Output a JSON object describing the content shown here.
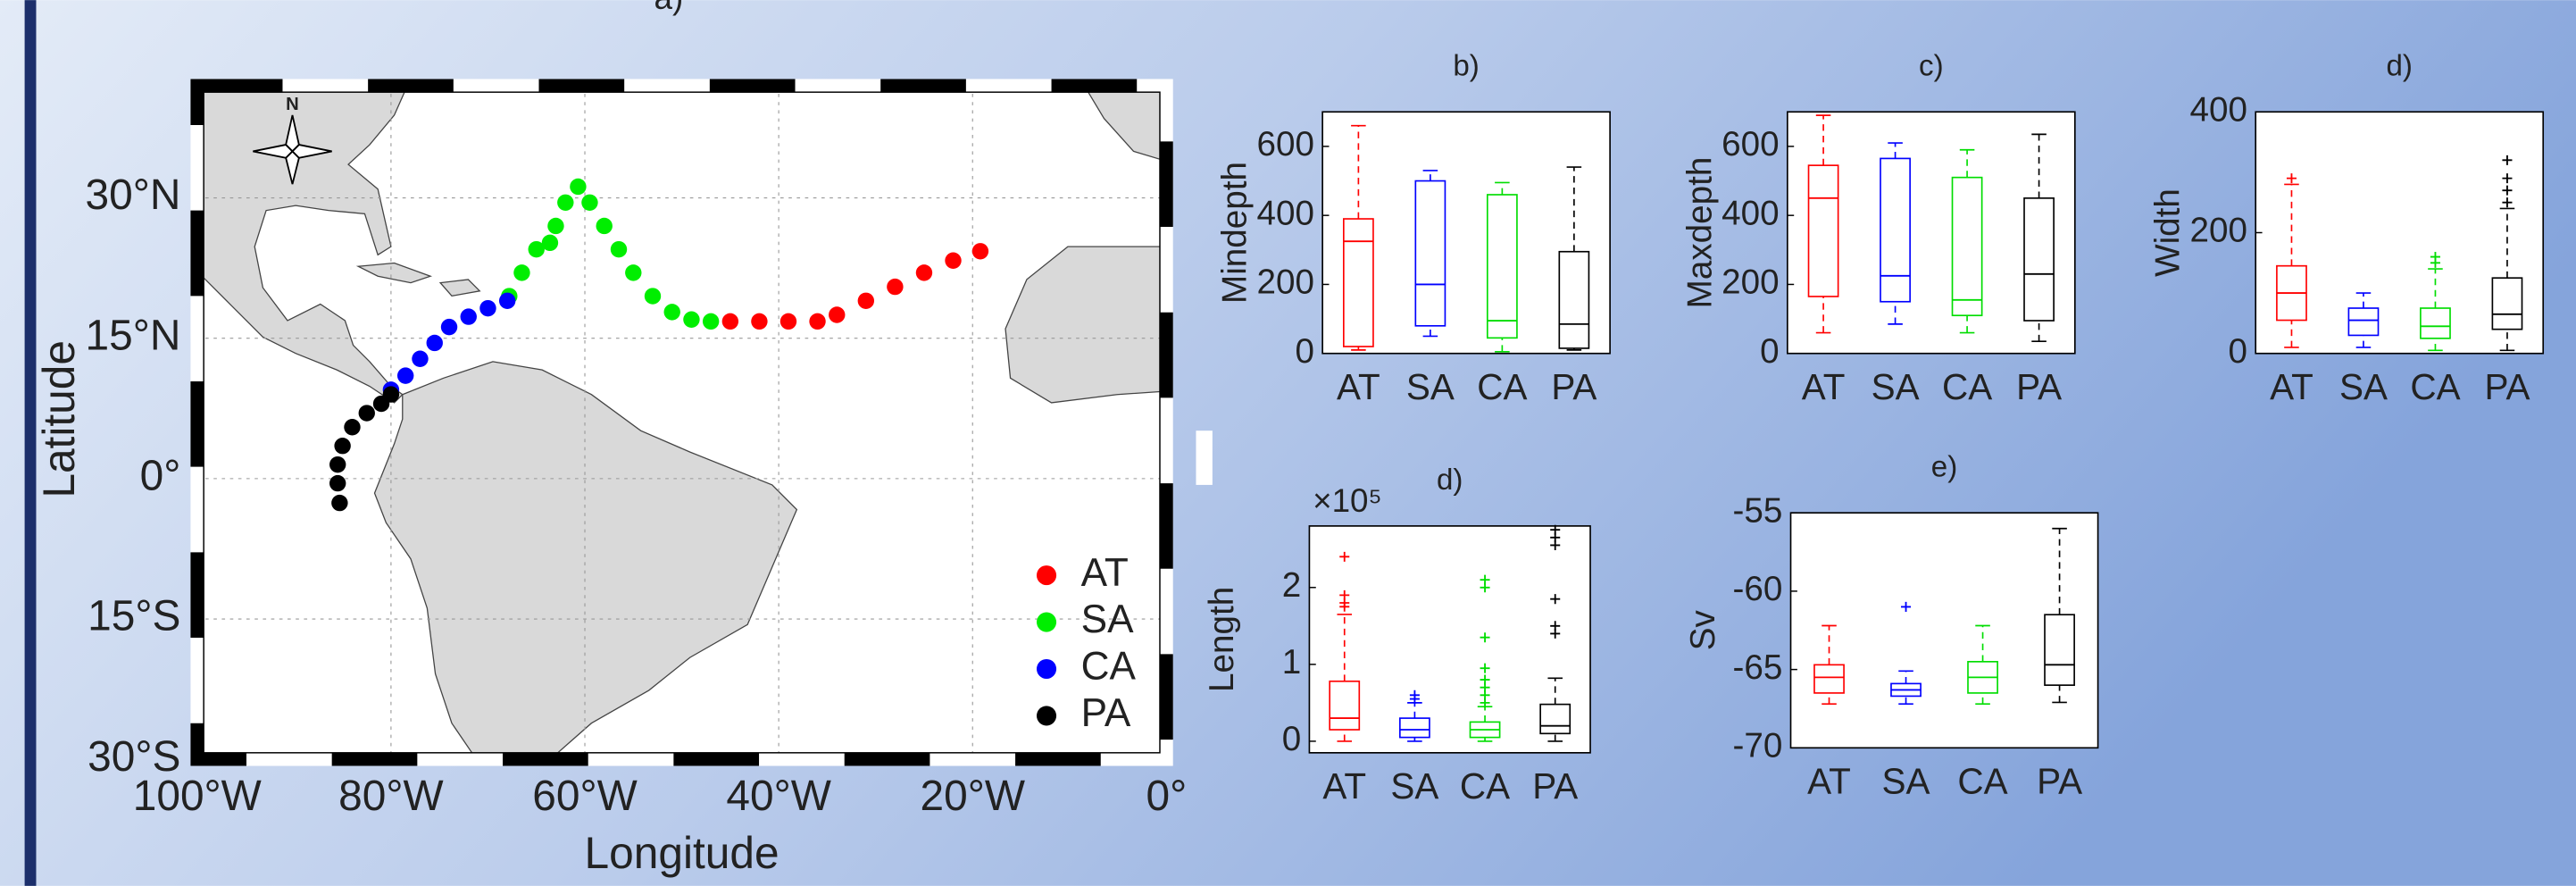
{
  "chart_data": [
    {
      "type": "scatter",
      "title": "a)",
      "xlabel": "Longitude",
      "ylabel": "Latitude",
      "compass_label": "N",
      "xlim": [
        -100,
        0
      ],
      "ylim": [
        -30,
        42
      ],
      "xticks": [
        {
          "value": -100,
          "label": "100°W"
        },
        {
          "value": -80,
          "label": "80°W"
        },
        {
          "value": -60,
          "label": "60°W"
        },
        {
          "value": -40,
          "label": "40°W"
        },
        {
          "value": -20,
          "label": "20°W"
        },
        {
          "value": 0,
          "label": "0°"
        }
      ],
      "yticks": [
        {
          "value": -30,
          "label": "30°S"
        },
        {
          "value": -15,
          "label": "15°S"
        },
        {
          "value": 0,
          "label": "0°"
        },
        {
          "value": 15,
          "label": "15°N"
        },
        {
          "value": 30,
          "label": "30°N"
        }
      ],
      "grid": true,
      "legend": "lower right",
      "series": [
        {
          "name": "AT",
          "color": "#ff0000",
          "x": [
            -45,
            -42,
            -39,
            -36,
            -34,
            -31,
            -28,
            -25,
            -22,
            -19.2
          ],
          "y": [
            16.8,
            16.8,
            16.8,
            16.8,
            17.5,
            19,
            20.5,
            22,
            23.3,
            24.3
          ]
        },
        {
          "name": "SA",
          "color": "#00ee00",
          "x": [
            -47,
            -49,
            -51,
            -53,
            -55,
            -56.5,
            -58,
            -59.5,
            -60.7,
            -62,
            -63,
            -63.6,
            -65,
            -66.5,
            -67.8
          ],
          "y": [
            16.8,
            17,
            17.8,
            19.5,
            22,
            24.5,
            27,
            29.5,
            31.2,
            29.5,
            27,
            25.2,
            24.5,
            22,
            19.5
          ]
        },
        {
          "name": "CA",
          "color": "#0000ff",
          "x": [
            -68,
            -70,
            -72,
            -74,
            -75.5,
            -77,
            -78.5,
            -80
          ],
          "y": [
            19,
            18.2,
            17.3,
            16.2,
            14.5,
            12.8,
            11,
            9.5
          ]
        },
        {
          "name": "PA",
          "color": "#000000",
          "x": [
            -80,
            -81,
            -82.5,
            -84,
            -85,
            -85.5,
            -85.5,
            -85.3
          ],
          "y": [
            9,
            8,
            7,
            5.5,
            3.5,
            1.5,
            -0.5,
            -2.6
          ]
        }
      ]
    },
    {
      "type": "box",
      "title": "b)",
      "ylabel": "Mindepth",
      "categories": [
        "AT",
        "SA",
        "CA",
        "PA"
      ],
      "colors": [
        "#ff0000",
        "#0000ff",
        "#00dd00",
        "#000000"
      ],
      "ylim": [
        0,
        700
      ],
      "yticks": [
        0,
        200,
        400,
        600
      ],
      "boxes": [
        {
          "min": 10,
          "q1": 20,
          "median": 325,
          "q3": 390,
          "max": 660,
          "outliers": []
        },
        {
          "min": 50,
          "q1": 80,
          "median": 200,
          "q3": 500,
          "max": 530,
          "outliers": []
        },
        {
          "min": 5,
          "q1": 45,
          "median": 95,
          "q3": 460,
          "max": 495,
          "outliers": []
        },
        {
          "min": 10,
          "q1": 15,
          "median": 85,
          "q3": 295,
          "max": 540,
          "outliers": []
        }
      ]
    },
    {
      "type": "box",
      "title": "c)",
      "ylabel": "Maxdepth",
      "categories": [
        "AT",
        "SA",
        "CA",
        "PA"
      ],
      "colors": [
        "#ff0000",
        "#0000ff",
        "#00dd00",
        "#000000"
      ],
      "ylim": [
        0,
        700
      ],
      "yticks": [
        0,
        200,
        400,
        600
      ],
      "boxes": [
        {
          "min": 60,
          "q1": 165,
          "median": 450,
          "q3": 545,
          "max": 690,
          "outliers": []
        },
        {
          "min": 85,
          "q1": 150,
          "median": 225,
          "q3": 565,
          "max": 610,
          "outliers": []
        },
        {
          "min": 60,
          "q1": 110,
          "median": 155,
          "q3": 510,
          "max": 590,
          "outliers": []
        },
        {
          "min": 35,
          "q1": 95,
          "median": 230,
          "q3": 450,
          "max": 635,
          "outliers": []
        }
      ]
    },
    {
      "type": "box",
      "title": "d)",
      "ylabel": "Width",
      "categories": [
        "AT",
        "SA",
        "CA",
        "PA"
      ],
      "colors": [
        "#ff0000",
        "#0000ff",
        "#00dd00",
        "#000000"
      ],
      "ylim": [
        0,
        400
      ],
      "yticks": [
        0,
        200,
        400
      ],
      "boxes": [
        {
          "min": 10,
          "q1": 55,
          "median": 100,
          "q3": 145,
          "max": 280,
          "outliers": [
            290
          ]
        },
        {
          "min": 10,
          "q1": 30,
          "median": 55,
          "q3": 75,
          "max": 100,
          "outliers": []
        },
        {
          "min": 5,
          "q1": 25,
          "median": 45,
          "q3": 75,
          "max": 140,
          "outliers": [
            150,
            160
          ]
        },
        {
          "min": 5,
          "q1": 40,
          "median": 65,
          "q3": 125,
          "max": 240,
          "outliers": [
            250,
            270,
            290,
            320
          ]
        }
      ]
    },
    {
      "type": "box",
      "title": "d)",
      "ylabel": "Length",
      "y_multiplier": "×10⁵",
      "categories": [
        "AT",
        "SA",
        "CA",
        "PA"
      ],
      "colors": [
        "#ff0000",
        "#0000ff",
        "#00dd00",
        "#000000"
      ],
      "ylim": [
        -0.15,
        2.8
      ],
      "yticks": [
        0,
        1,
        2
      ],
      "boxes": [
        {
          "min": 0,
          "q1": 0.15,
          "median": 0.3,
          "q3": 0.78,
          "max": 1.65,
          "outliers": [
            1.75,
            1.8,
            1.9,
            2.4
          ]
        },
        {
          "min": 0,
          "q1": 0.05,
          "median": 0.15,
          "q3": 0.3,
          "max": 0.5,
          "outliers": [
            0.55,
            0.6
          ]
        },
        {
          "min": 0,
          "q1": 0.05,
          "median": 0.15,
          "q3": 0.25,
          "max": 0.45,
          "outliers": [
            0.5,
            0.6,
            0.7,
            0.8,
            0.95,
            1.35,
            2.0,
            2.1
          ]
        },
        {
          "min": 0,
          "q1": 0.1,
          "median": 0.2,
          "q3": 0.48,
          "max": 0.82,
          "outliers": [
            1.4,
            1.5,
            1.85,
            2.55,
            2.65,
            2.75
          ]
        }
      ]
    },
    {
      "type": "box",
      "title": "e)",
      "ylabel": "Sv",
      "categories": [
        "AT",
        "SA",
        "CA",
        "PA"
      ],
      "colors": [
        "#ff0000",
        "#0000ff",
        "#00dd00",
        "#000000"
      ],
      "ylim": [
        -70,
        -55
      ],
      "yticks": [
        -70,
        -65,
        -60,
        -55
      ],
      "boxes": [
        {
          "min": -67.2,
          "q1": -66.5,
          "median": -65.5,
          "q3": -64.7,
          "max": -62.2,
          "outliers": []
        },
        {
          "min": -67.2,
          "q1": -66.7,
          "median": -66.3,
          "q3": -65.9,
          "max": -65.1,
          "outliers": [
            -61
          ]
        },
        {
          "min": -67.2,
          "q1": -66.5,
          "median": -65.5,
          "q3": -64.5,
          "max": -62.2,
          "outliers": []
        },
        {
          "min": -67.1,
          "q1": -66,
          "median": -64.7,
          "q3": -61.5,
          "max": -56,
          "outliers": []
        }
      ]
    }
  ]
}
